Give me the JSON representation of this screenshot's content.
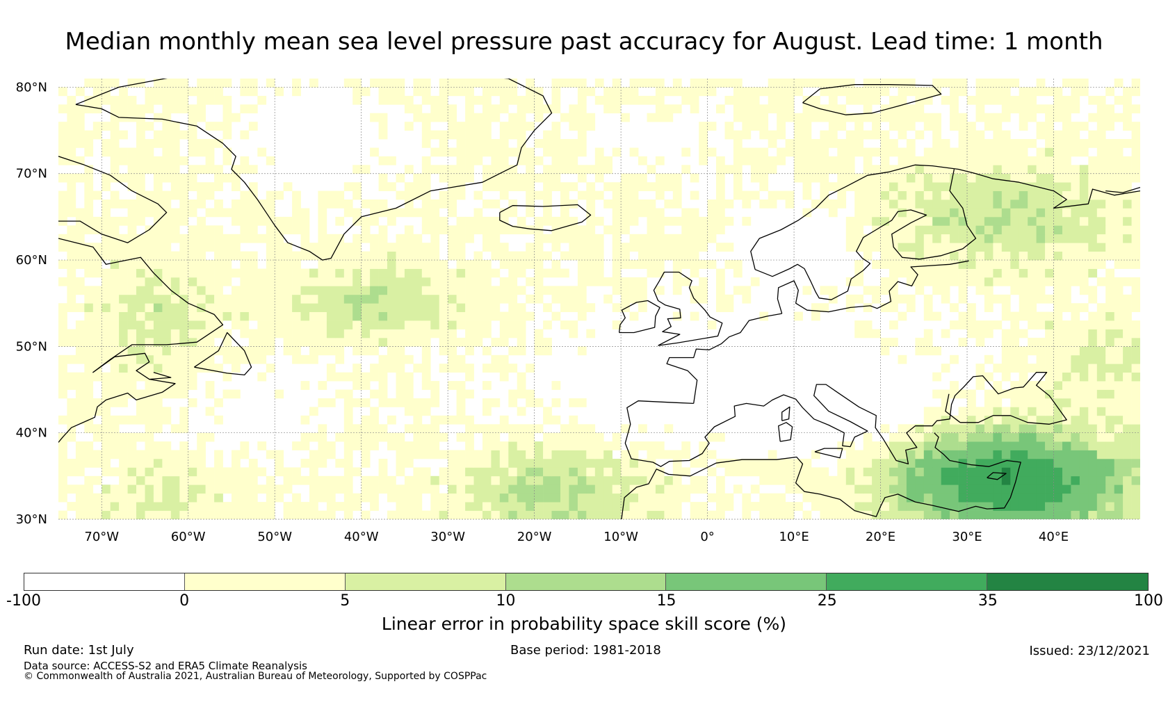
{
  "title": "Median monthly mean sea level pressure past accuracy for August. Lead time: 1 month",
  "map": {
    "lon_range": [
      -75,
      50
    ],
    "lat_range": [
      30,
      81
    ],
    "lat_ticks": [
      {
        "value": 80,
        "label": "80°N"
      },
      {
        "value": 70,
        "label": "70°N"
      },
      {
        "value": 60,
        "label": "60°N"
      },
      {
        "value": 50,
        "label": "50°N"
      },
      {
        "value": 40,
        "label": "40°N"
      },
      {
        "value": 30,
        "label": "30°N"
      }
    ],
    "lon_ticks": [
      {
        "value": -70,
        "label": "70°W"
      },
      {
        "value": -60,
        "label": "60°W"
      },
      {
        "value": -50,
        "label": "50°W"
      },
      {
        "value": -40,
        "label": "40°W"
      },
      {
        "value": -30,
        "label": "30°W"
      },
      {
        "value": -20,
        "label": "20°W"
      },
      {
        "value": -10,
        "label": "10°W"
      },
      {
        "value": 0,
        "label": "0°"
      },
      {
        "value": 10,
        "label": "10°E"
      },
      {
        "value": 20,
        "label": "20°E"
      },
      {
        "value": 30,
        "label": "30°E"
      },
      {
        "value": 40,
        "label": "40°E"
      }
    ],
    "coastline_color": "#000000",
    "gridline_color": "#888888"
  },
  "colorbar": {
    "label": "Linear error in probability space skill score (%)",
    "bins": [
      {
        "min": -100,
        "max": 0,
        "color": "#ffffff"
      },
      {
        "min": 0,
        "max": 5,
        "color": "#ffffcc"
      },
      {
        "min": 5,
        "max": 10,
        "color": "#d9f0a3"
      },
      {
        "min": 10,
        "max": 15,
        "color": "#addd8e"
      },
      {
        "min": 15,
        "max": 25,
        "color": "#78c679"
      },
      {
        "min": 25,
        "max": 35,
        "color": "#41ab5d"
      },
      {
        "min": 35,
        "max": 100,
        "color": "#238443"
      }
    ],
    "tick_labels": [
      "-100",
      "0",
      "5",
      "10",
      "15",
      "25",
      "35",
      "100"
    ]
  },
  "footer": {
    "run_date": "Run date: 1st July",
    "base_period": "Base period: 1981-2018",
    "issued": "Issued: 23/12/2021",
    "data_source": "Data source: ACCESS-S2 and ERA5 Climate Reanalysis",
    "copyright": "© Commonwealth of Australia 2021, Australian Bureau of Meteorology, Supported by COSPPac"
  }
}
